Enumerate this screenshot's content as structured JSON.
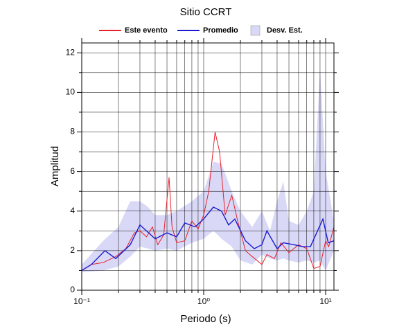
{
  "chart_data": {
    "type": "line",
    "title": "Sitio CCRT",
    "xlabel": "Periodo (s)",
    "ylabel": "Amplitud",
    "xscale": "log",
    "xlim": [
      0.1,
      11.7
    ],
    "ylim": [
      0,
      12.5
    ],
    "xticks": [
      {
        "value": 0.1,
        "label": "10⁻¹"
      },
      {
        "value": 1,
        "label": "10⁰"
      },
      {
        "value": 10,
        "label": "10¹"
      }
    ],
    "minor_xticks": [
      0.2,
      0.3,
      0.4,
      0.5,
      0.6,
      0.7,
      0.8,
      0.9,
      2,
      3,
      4,
      5,
      6,
      7,
      8,
      9
    ],
    "yticks": [
      0,
      2,
      4,
      6,
      8,
      10,
      12
    ],
    "minor_yticks": [
      1,
      3,
      5,
      7,
      9,
      11
    ],
    "grid": true,
    "band": {
      "name": "Desv. Est.",
      "color": "#d9d9f7",
      "x": [
        0.1,
        0.15,
        0.2,
        0.25,
        0.3,
        0.35,
        0.4,
        0.5,
        0.6,
        0.8,
        1.0,
        1.2,
        1.4,
        1.7,
        2.0,
        2.5,
        3.0,
        3.5,
        4.0,
        4.5,
        5.0,
        6.0,
        7.0,
        8.0,
        9.0,
        10.0,
        11.7
      ],
      "lower": [
        0.9,
        1.0,
        1.2,
        1.7,
        2.2,
        2.1,
        2.0,
        2.1,
        2.0,
        2.4,
        2.6,
        3.0,
        2.6,
        2.2,
        1.5,
        1.3,
        1.8,
        1.6,
        1.5,
        1.6,
        1.5,
        1.4,
        1.5,
        1.4,
        1.5,
        1.0,
        2.0
      ],
      "upper": [
        1.3,
        2.5,
        3.2,
        4.5,
        4.5,
        4.2,
        3.8,
        3.8,
        4.0,
        4.5,
        5.0,
        6.5,
        6.4,
        5.0,
        4.0,
        3.2,
        4.0,
        3.0,
        4.5,
        5.5,
        3.5,
        3.3,
        4.0,
        5.0,
        11.2,
        6.0,
        3.5
      ]
    },
    "series": [
      {
        "name": "Este evento",
        "color": "#e8202a",
        "x": [
          0.1,
          0.12,
          0.15,
          0.19,
          0.23,
          0.27,
          0.3,
          0.34,
          0.38,
          0.42,
          0.47,
          0.52,
          0.55,
          0.6,
          0.7,
          0.8,
          0.9,
          1.0,
          1.1,
          1.24,
          1.35,
          1.5,
          1.7,
          1.9,
          2.2,
          2.5,
          3.0,
          3.3,
          3.8,
          4.3,
          5.0,
          6.0,
          7.0,
          8.0,
          9.0,
          10.0,
          10.6,
          11.7
        ],
        "values": [
          1.0,
          1.3,
          1.4,
          1.7,
          2.1,
          2.9,
          3.0,
          2.7,
          3.2,
          2.3,
          2.8,
          5.7,
          3.2,
          2.4,
          2.5,
          3.5,
          3.1,
          3.8,
          5.0,
          8.0,
          7.0,
          3.8,
          4.8,
          3.5,
          2.0,
          1.7,
          1.3,
          1.8,
          1.6,
          2.4,
          1.9,
          2.3,
          2.1,
          1.1,
          1.2,
          2.5,
          2.2,
          3.2
        ]
      },
      {
        "name": "Promedio",
        "color": "#1a1ad0",
        "x": [
          0.1,
          0.12,
          0.155,
          0.19,
          0.25,
          0.3,
          0.4,
          0.5,
          0.6,
          0.7,
          0.85,
          1.0,
          1.2,
          1.4,
          1.6,
          1.8,
          2.2,
          2.6,
          3.0,
          3.3,
          4.0,
          4.5,
          5.5,
          6.5,
          7.5,
          9.5,
          10.5,
          11.7
        ],
        "values": [
          1.0,
          1.3,
          2.0,
          1.6,
          2.3,
          3.3,
          2.6,
          2.9,
          2.7,
          3.4,
          3.2,
          3.6,
          4.2,
          4.0,
          3.3,
          3.6,
          2.5,
          2.1,
          2.3,
          3.0,
          2.1,
          2.4,
          2.3,
          2.2,
          2.2,
          3.6,
          2.4,
          2.5
        ]
      }
    ]
  }
}
